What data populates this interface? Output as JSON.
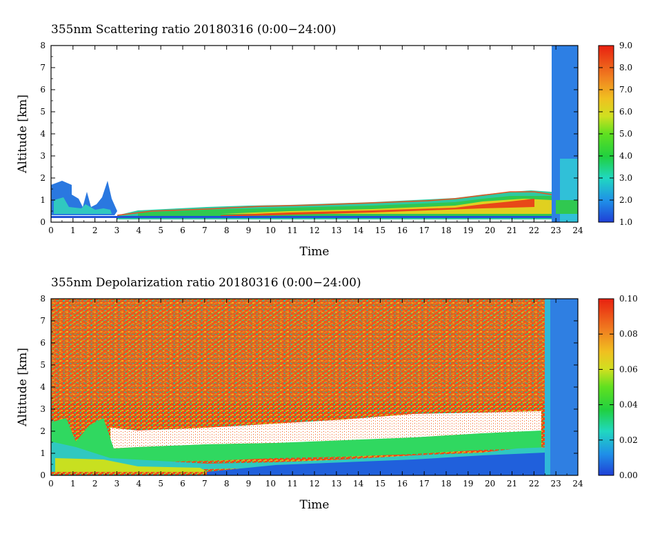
{
  "chart_data": [
    {
      "type": "heatmap",
      "title": "355nm Scattering ratio  20180316 (0:00−24:00)",
      "xlabel": "Time",
      "ylabel": "Altitude [km]",
      "xlim": [
        0,
        24
      ],
      "ylim": [
        0,
        8
      ],
      "x_ticks": [
        "0",
        "1",
        "2",
        "3",
        "4",
        "5",
        "6",
        "7",
        "8",
        "9",
        "10",
        "11",
        "12",
        "13",
        "14",
        "15",
        "16",
        "17",
        "18",
        "19",
        "20",
        "21",
        "22",
        "23",
        "24"
      ],
      "y_ticks": [
        "0",
        "1",
        "2",
        "3",
        "4",
        "5",
        "6",
        "7",
        "8"
      ],
      "colorbar": {
        "range": [
          1.0,
          9.0
        ],
        "ticks": [
          "1.0",
          "2.0",
          "3.0",
          "4.0",
          "5.0",
          "6.0",
          "7.0",
          "8.0",
          "9.0"
        ],
        "colors": [
          "#1f3fd6",
          "#1fa0e8",
          "#20d8c0",
          "#20d040",
          "#90e020",
          "#f0e020",
          "#f0a020",
          "#f06020",
          "#e82010"
        ]
      },
      "boundary_layer_top_km": [
        {
          "time": 0,
          "alt": 1.0
        },
        {
          "time": 3.5,
          "alt": 0.4
        },
        {
          "time": 7,
          "alt": 0.55
        },
        {
          "time": 10,
          "alt": 0.6
        },
        {
          "time": 14,
          "alt": 0.75
        },
        {
          "time": 18,
          "alt": 0.95
        },
        {
          "time": 21,
          "alt": 1.3
        },
        {
          "time": 22.8,
          "alt": 1.3
        }
      ],
      "cloud_column": {
        "time_start": 22.8,
        "time_end": 24,
        "alt_top": 8
      }
    },
    {
      "type": "heatmap",
      "title": "355nm Depolarization ratio  20180316 (0:00−24:00)",
      "xlabel": "Time",
      "ylabel": "Altitude [km]",
      "xlim": [
        0,
        24
      ],
      "ylim": [
        0,
        8
      ],
      "x_ticks": [
        "0",
        "1",
        "2",
        "3",
        "4",
        "5",
        "6",
        "7",
        "8",
        "9",
        "10",
        "11",
        "12",
        "13",
        "14",
        "15",
        "16",
        "17",
        "18",
        "19",
        "20",
        "21",
        "22",
        "23",
        "24"
      ],
      "y_ticks": [
        "0",
        "1",
        "2",
        "3",
        "4",
        "5",
        "6",
        "7",
        "8"
      ],
      "colorbar": {
        "range": [
          0.0,
          0.1
        ],
        "ticks": [
          "0.00",
          "0.02",
          "0.04",
          "0.06",
          "0.08",
          "0.10"
        ],
        "colors": [
          "#1f3fd6",
          "#1fa0e8",
          "#20d8c0",
          "#20d040",
          "#90e020",
          "#f0e020",
          "#f0a020",
          "#f06020",
          "#e82010"
        ]
      },
      "boundary_layer_top_km": [
        {
          "time": 0,
          "alt": 1.8
        },
        {
          "time": 3,
          "alt": 1.2
        },
        {
          "time": 10,
          "alt": 1.3
        },
        {
          "time": 18,
          "alt": 1.6
        },
        {
          "time": 22.5,
          "alt": 1.9
        }
      ],
      "cloud_column": {
        "time_start": 22.8,
        "time_end": 24,
        "alt_top": 8
      }
    }
  ]
}
